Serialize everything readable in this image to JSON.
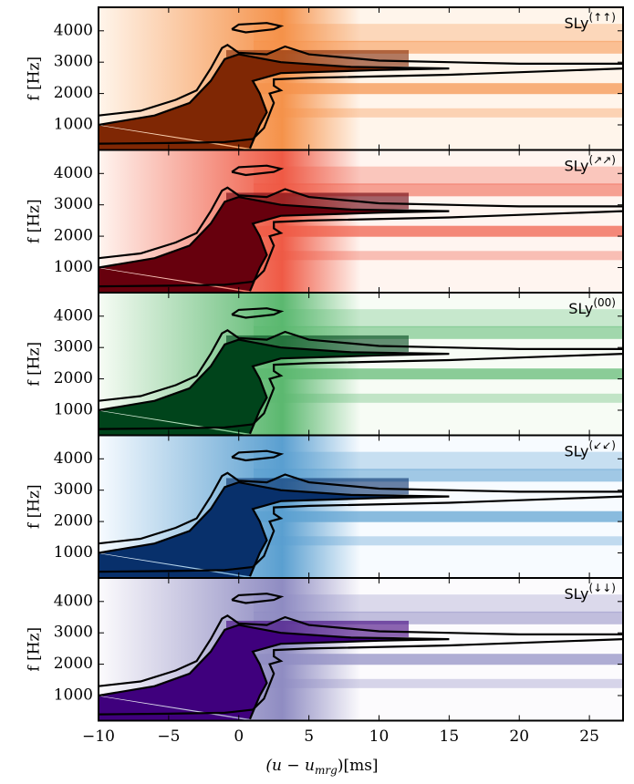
{
  "chart_data": {
    "type": "spectrogram",
    "ylabel": "f [Hz]",
    "xlabel": "(u − u",
    "xlabel_sub": "mrg",
    "xlabel_end": ")[ms]",
    "xlim": [
      -10,
      27.4
    ],
    "xticks": [
      {
        "value": -10,
        "label": "−10"
      },
      {
        "value": -5,
        "label": "−5"
      },
      0,
      5,
      10,
      15,
      20,
      25
    ],
    "ylim": [
      200,
      4750
    ],
    "yticks": [
      1000,
      2000,
      3000,
      4000
    ],
    "panels": [
      {
        "name": "SLy",
        "sup": "(↑↑)",
        "colormap": [
          "#fff5eb",
          "#f5924a",
          "#7f2704"
        ]
      },
      {
        "name": "SLy",
        "sup": "(↗↗)",
        "colormap": [
          "#fff5f0",
          "#ef5a45",
          "#67000d"
        ]
      },
      {
        "name": "SLy",
        "sup": "(00)",
        "colormap": [
          "#f7fcf5",
          "#5bb86f",
          "#00441b"
        ]
      },
      {
        "name": "SLy",
        "sup": "(↙↙)",
        "colormap": [
          "#f7fbff",
          "#5a9fd0",
          "#08306b"
        ]
      },
      {
        "name": "SLy",
        "sup": "(↓↓)",
        "colormap": [
          "#fcfbfd",
          "#8f8cc2",
          "#3f007d"
        ]
      }
    ],
    "contours": [
      {
        "x": [
          -10,
          -7,
          -4.5,
          -3,
          -2,
          -1.2,
          -0.8,
          0,
          2,
          3.3,
          5,
          10,
          20,
          27.4
        ],
        "y": [
          1300,
          1450,
          1800,
          2100,
          2800,
          3450,
          3550,
          3300,
          3250,
          3500,
          3250,
          3050,
          2950,
          2950
        ]
      },
      {
        "x": [
          -10,
          -6,
          -3.5,
          -2,
          -1,
          0,
          3,
          8,
          15,
          10,
          3,
          1,
          1.5,
          2,
          1.5,
          0.8
        ],
        "y": [
          1000,
          1300,
          1700,
          2400,
          3100,
          3250,
          3000,
          2850,
          2800,
          2750,
          2650,
          2400,
          2000,
          1400,
          1000,
          250
        ]
      },
      {
        "x": [
          -10,
          -5,
          -1,
          1,
          1.8,
          2.5,
          2.2,
          3,
          2.5,
          2.5,
          5,
          15,
          27.4
        ],
        "y": [
          400,
          420,
          450,
          550,
          900,
          1700,
          2000,
          2100,
          2250,
          2450,
          2500,
          2600,
          2800
        ]
      },
      {
        "x": [
          -0.5,
          0,
          2,
          3,
          2.5,
          0.5,
          -0.5
        ],
        "y": [
          4050,
          4200,
          4250,
          4150,
          4050,
          3950,
          4050
        ]
      }
    ]
  }
}
